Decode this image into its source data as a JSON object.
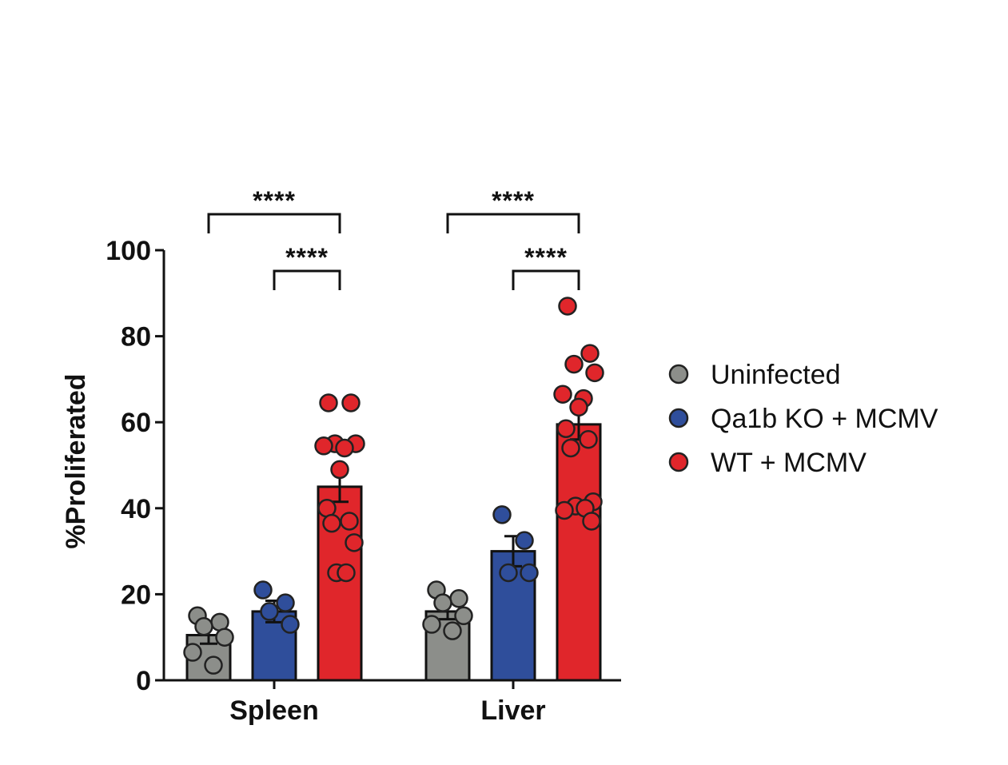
{
  "chart_data": {
    "type": "bar",
    "ylabel": "%Proliferated",
    "xlabel": "",
    "ylim": [
      0,
      100
    ],
    "yticks": [
      "0",
      "20",
      "40",
      "60",
      "80",
      "100"
    ],
    "categories": [
      "Spleen",
      "Liver"
    ],
    "legend_position": "right",
    "series": [
      {
        "name": "Uninfected",
        "color": "#8c8e8a",
        "values": [
          10.5,
          16
        ],
        "errors": [
          2,
          1.8
        ],
        "points": [
          [
            15,
            13.5,
            12.5,
            10,
            6.5,
            3.5
          ],
          [
            21,
            19,
            18,
            15,
            13,
            11.5
          ]
        ]
      },
      {
        "name": "Qa1b KO + MCMV",
        "color": "#2f4e9b",
        "values": [
          16,
          30
        ],
        "errors": [
          2.5,
          3.5
        ],
        "points": [
          [
            21,
            18,
            16,
            13
          ],
          [
            38.5,
            32.5,
            25,
            25
          ]
        ]
      },
      {
        "name": "WT + MCMV",
        "color": "#e0262b",
        "values": [
          45,
          59.5
        ],
        "errors": [
          3.5,
          3.5
        ],
        "points": [
          [
            64.5,
            64.5,
            55,
            55,
            54.5,
            54,
            49,
            40,
            37,
            36.5,
            32,
            25,
            25
          ],
          [
            87,
            76,
            73.5,
            71.5,
            66.5,
            65.5,
            63.5,
            58.5,
            56,
            54,
            41.5,
            40.5,
            40,
            39.5,
            37
          ]
        ]
      }
    ],
    "annotations": [
      {
        "group": "Spleen",
        "from": "Uninfected",
        "to": "WT + MCMV",
        "label": "****",
        "level": 2
      },
      {
        "group": "Spleen",
        "from": "Qa1b KO + MCMV",
        "to": "WT + MCMV",
        "label": "****",
        "level": 1
      },
      {
        "group": "Liver",
        "from": "Uninfected",
        "to": "WT + MCMV",
        "label": "****",
        "level": 2
      },
      {
        "group": "Liver",
        "from": "Qa1b KO + MCMV",
        "to": "WT + MCMV",
        "label": "****",
        "level": 1
      }
    ]
  }
}
